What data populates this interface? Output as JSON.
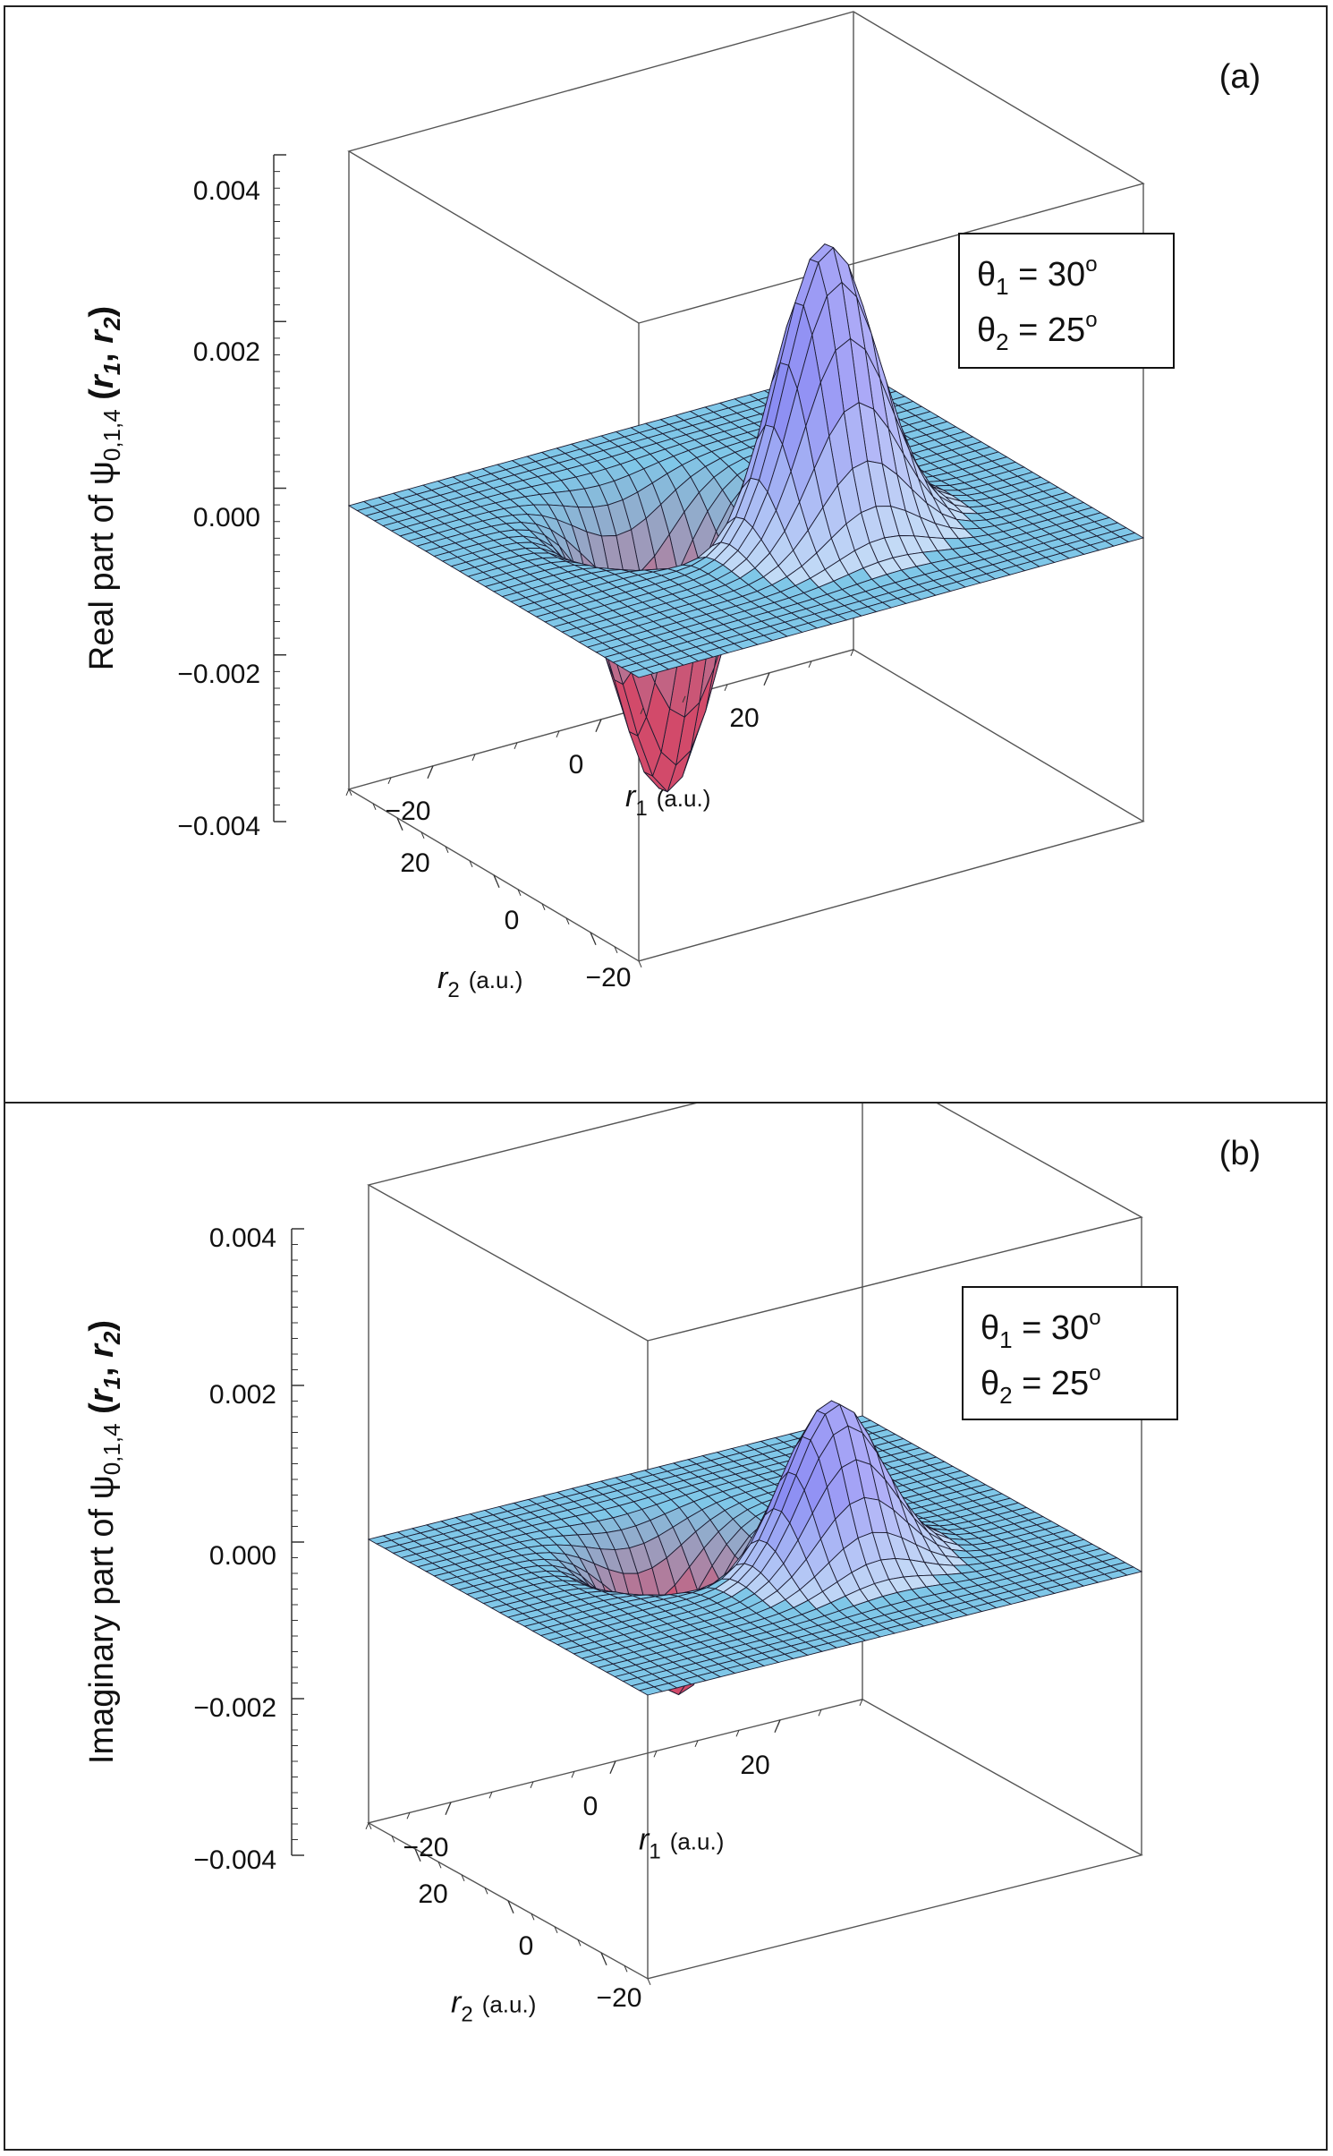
{
  "chart_data": [
    {
      "type": "surface3d",
      "panel_label": "(a)",
      "zlabel_prefix": "Real part of ",
      "zlabel_psi": "ψ",
      "zlabel_sub": "0,1,4",
      "zlabel_args": [
        " (",
        "r",
        "1",
        ", ",
        "r",
        "2",
        ")"
      ],
      "zticks": [
        "0.004",
        "0.002",
        "0.000",
        "−0.002",
        "−0.004"
      ],
      "zlim": [
        -0.004,
        0.004
      ],
      "x_axis": {
        "name": "r",
        "sub": "1",
        "unit": "(a.u.)",
        "ticks": [
          "−20",
          "0",
          "20"
        ],
        "range": [
          -30,
          30
        ]
      },
      "y_axis": {
        "name": "r",
        "sub": "2",
        "unit": "(a.u.)",
        "ticks": [
          "−20",
          "0",
          "20"
        ],
        "range": [
          -30,
          30
        ]
      },
      "legend_lines": [
        {
          "symbol": "θ",
          "sub": "1",
          "text": " = 30",
          "sup": "o"
        },
        {
          "symbol": "θ",
          "sub": "2",
          "text": " = 25",
          "sup": "o"
        }
      ],
      "surface": {
        "positive_peak": 0.0037,
        "negative_peak": -0.0036,
        "peak_r1": 5,
        "peak_r2": -8,
        "trough_r1": -5,
        "trough_r2": 8
      },
      "colors": {
        "positive": "#6a6cf0",
        "negative": "#d24a6a",
        "flat": "#7fc7e8"
      }
    },
    {
      "type": "surface3d",
      "panel_label": "(b)",
      "zlabel_prefix": "Imaginary part of ",
      "zlabel_psi": "ψ",
      "zlabel_sub": "0,1,4",
      "zlabel_args": [
        " (",
        "r",
        "1",
        ", ",
        "r",
        "2",
        ")"
      ],
      "zticks": [
        "0.004",
        "0.002",
        "0.000",
        "−0.002",
        "−0.004"
      ],
      "zlim": [
        -0.004,
        0.004
      ],
      "x_axis": {
        "name": "r",
        "sub": "1",
        "unit": "(a.u.)",
        "ticks": [
          "−20",
          "0",
          "20"
        ],
        "range": [
          -30,
          30
        ]
      },
      "y_axis": {
        "name": "r",
        "sub": "2",
        "unit": "(a.u.)",
        "ticks": [
          "−20",
          "0",
          "20"
        ],
        "range": [
          -30,
          30
        ]
      },
      "legend_lines": [
        {
          "symbol": "θ",
          "sub": "1",
          "text": " = 30",
          "sup": "o"
        },
        {
          "symbol": "θ",
          "sub": "2",
          "text": " = 25",
          "sup": "o"
        }
      ],
      "surface": {
        "positive_peak": 0.0021,
        "negative_peak": -0.0019,
        "peak_r1": 5,
        "peak_r2": -8,
        "trough_r1": -5,
        "trough_r2": 8
      },
      "colors": {
        "positive": "#6a6cf0",
        "negative": "#d24a6a",
        "flat": "#7fc7e8"
      }
    }
  ]
}
